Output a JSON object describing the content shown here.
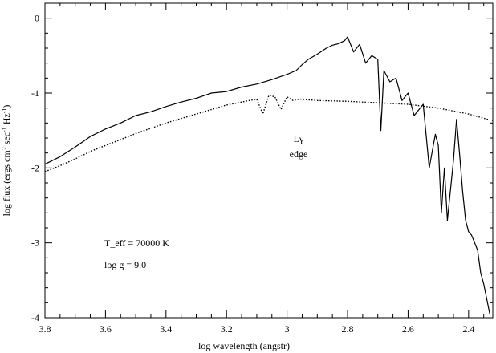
{
  "chart_data": {
    "type": "line",
    "xlabel": "log wavelength (angstr)",
    "ylabel": "log flux (ergs cm",
    "ylabel_sup1": "2",
    "ylabel_mid": " sec",
    "ylabel_sup2": "-1",
    "ylabel_mid2": " Hz",
    "ylabel_sup3": "-1",
    "ylabel_end": ")",
    "xlim": [
      3.8,
      2.32
    ],
    "ylim": [
      -4,
      0.2
    ],
    "x_ticks": [
      3.8,
      3.6,
      3.4,
      3.2,
      3,
      2.8,
      2.6,
      2.4
    ],
    "x_tick_labels": [
      "3.8",
      "3.6",
      "3.4",
      "3.2",
      "3",
      "2.8",
      "2.6",
      "2.4"
    ],
    "y_ticks": [
      0,
      -1,
      -2,
      -3,
      -4
    ],
    "y_tick_labels": [
      "0",
      "-1",
      "-2",
      "-3",
      "-4"
    ],
    "grid": false,
    "series": [
      {
        "style": "solid",
        "x": [
          3.8,
          3.75,
          3.7,
          3.65,
          3.6,
          3.55,
          3.5,
          3.45,
          3.4,
          3.35,
          3.3,
          3.25,
          3.2,
          3.15,
          3.1,
          3.05,
          3.0,
          2.97,
          2.95,
          2.93,
          2.9,
          2.87,
          2.85,
          2.83,
          2.81,
          2.8,
          2.78,
          2.76,
          2.74,
          2.72,
          2.7,
          2.69,
          2.68,
          2.66,
          2.64,
          2.62,
          2.6,
          2.58,
          2.55,
          2.53,
          2.51,
          2.5,
          2.49,
          2.48,
          2.47,
          2.46,
          2.45,
          2.44,
          2.43,
          2.42,
          2.41,
          2.4,
          2.39,
          2.38,
          2.37,
          2.36,
          2.35,
          2.34,
          2.33
        ],
        "y": [
          -1.95,
          -1.85,
          -1.72,
          -1.58,
          -1.48,
          -1.4,
          -1.3,
          -1.25,
          -1.18,
          -1.12,
          -1.07,
          -1.0,
          -0.98,
          -0.92,
          -0.88,
          -0.82,
          -0.75,
          -0.7,
          -0.62,
          -0.55,
          -0.48,
          -0.4,
          -0.36,
          -0.34,
          -0.3,
          -0.25,
          -0.45,
          -0.35,
          -0.6,
          -0.5,
          -0.55,
          -1.5,
          -0.7,
          -0.85,
          -0.8,
          -1.1,
          -1.0,
          -1.3,
          -1.15,
          -2.0,
          -1.55,
          -1.7,
          -2.6,
          -2.0,
          -2.7,
          -2.3,
          -1.9,
          -1.35,
          -1.8,
          -2.3,
          -2.7,
          -2.85,
          -2.9,
          -3.0,
          -3.1,
          -3.4,
          -3.55,
          -3.75,
          -3.95
        ]
      },
      {
        "style": "dotted",
        "x": [
          3.8,
          3.75,
          3.7,
          3.65,
          3.6,
          3.55,
          3.5,
          3.45,
          3.4,
          3.35,
          3.3,
          3.25,
          3.2,
          3.15,
          3.1,
          3.08,
          3.06,
          3.04,
          3.02,
          3.0,
          2.98,
          2.96,
          2.9,
          2.8,
          2.7,
          2.6,
          2.5,
          2.4,
          2.32
        ],
        "y": [
          -2.05,
          -1.97,
          -1.88,
          -1.78,
          -1.7,
          -1.62,
          -1.54,
          -1.47,
          -1.4,
          -1.34,
          -1.28,
          -1.22,
          -1.16,
          -1.12,
          -1.08,
          -1.28,
          -1.03,
          -1.05,
          -1.22,
          -1.05,
          -1.1,
          -1.08,
          -1.1,
          -1.11,
          -1.13,
          -1.15,
          -1.2,
          -1.28,
          -1.37
        ]
      }
    ],
    "annotations": {
      "edge_line1": "Lγ",
      "edge_line2": "edge",
      "teff": "T_eff = 70000 K",
      "logg": "log g = 9.0"
    }
  }
}
